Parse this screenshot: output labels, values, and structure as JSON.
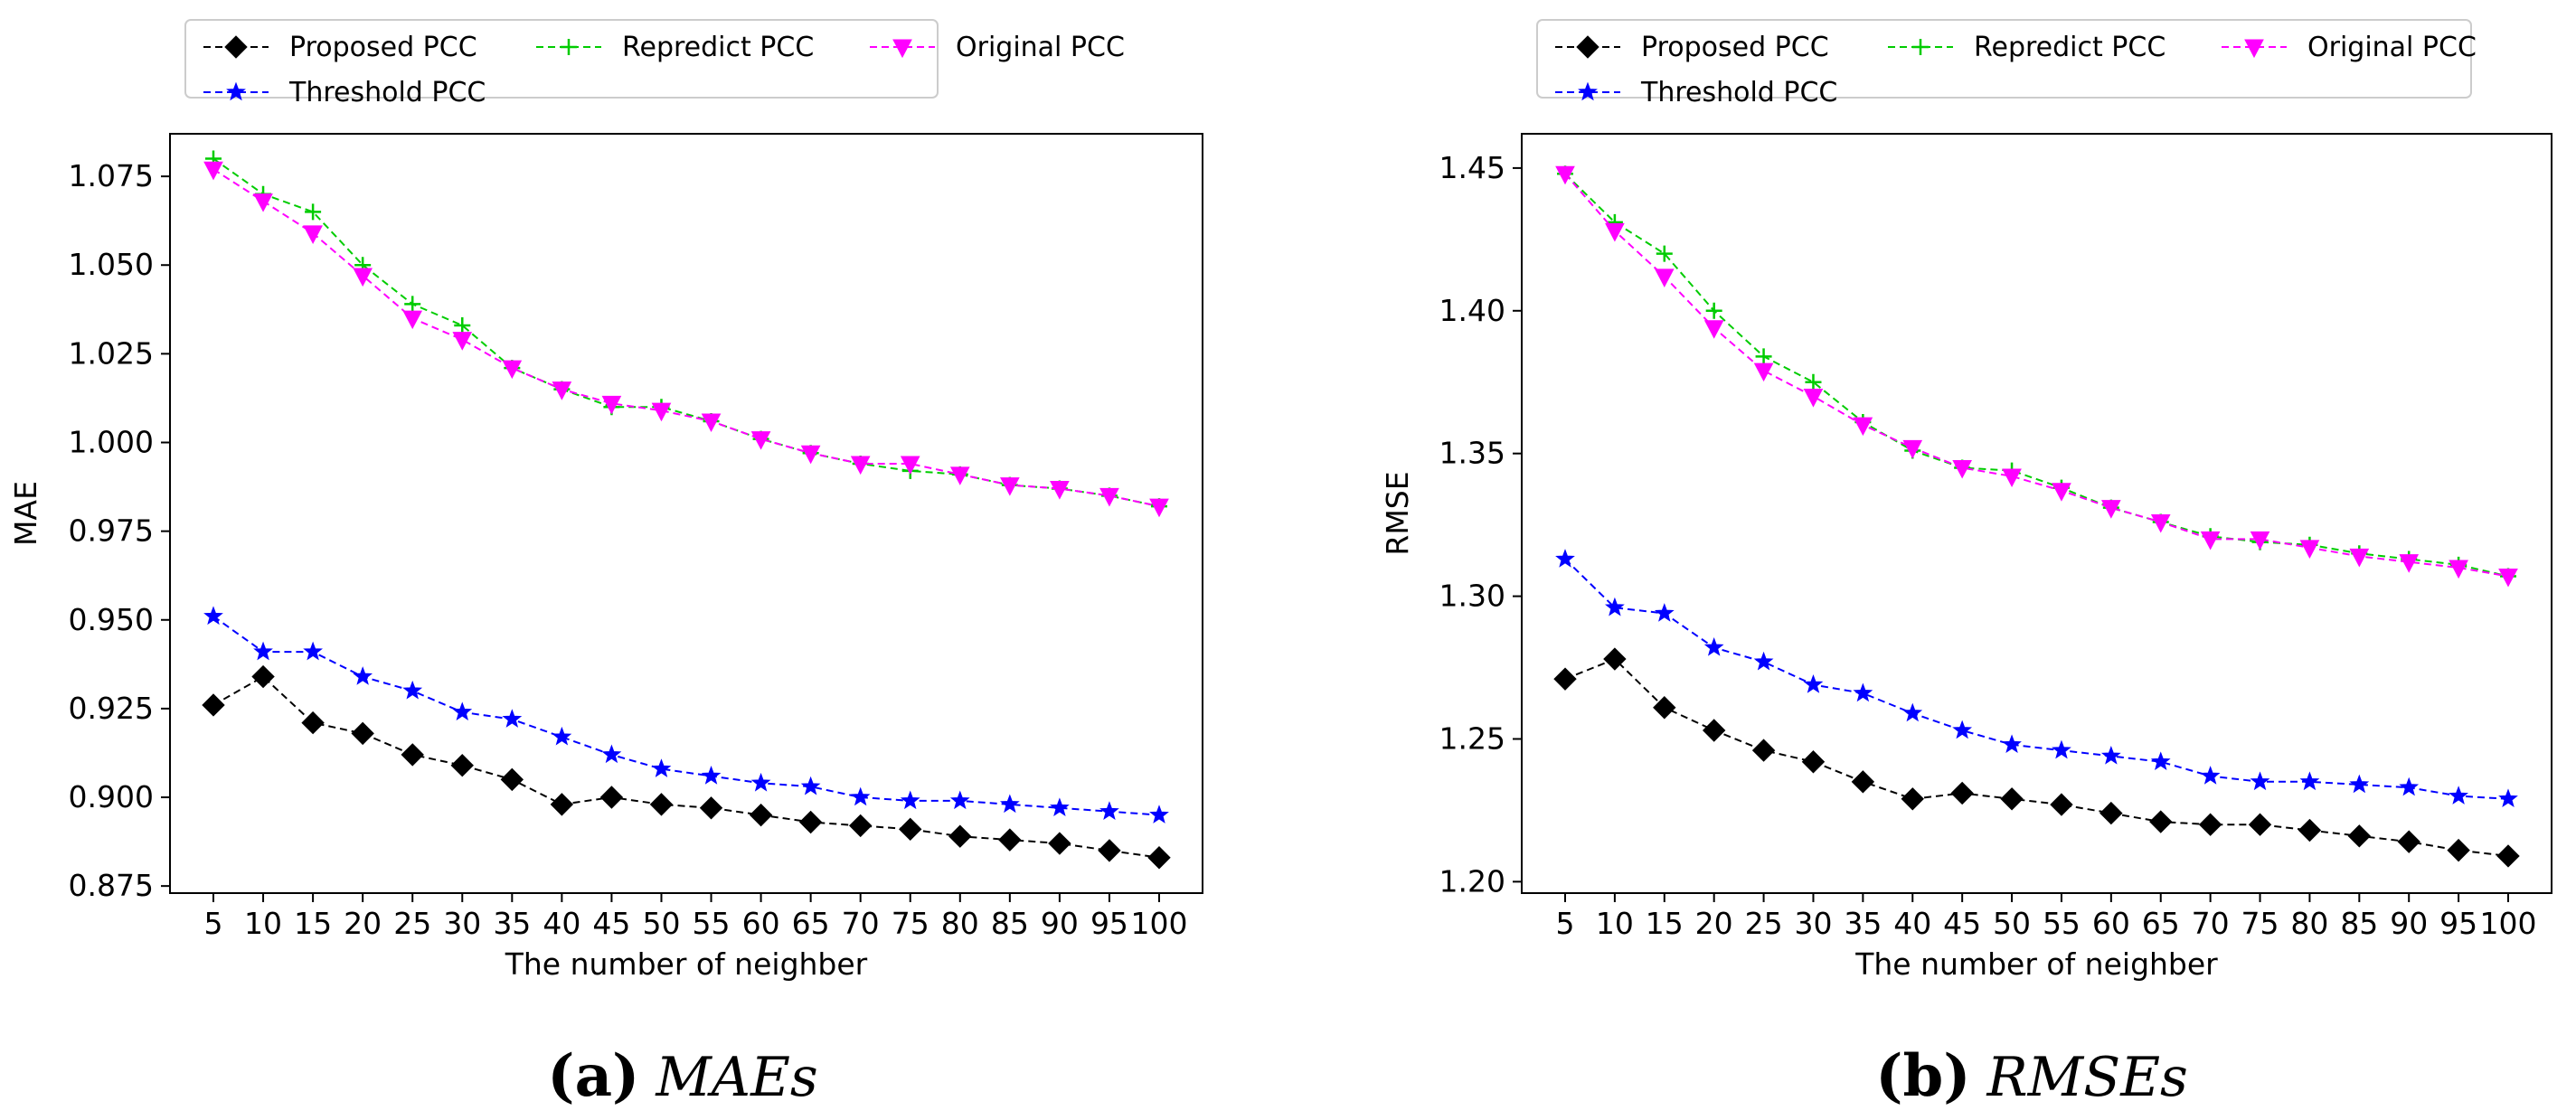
{
  "chart_data": [
    {
      "type": "line",
      "caption_letter": "(a)",
      "caption_text": "MAEs",
      "xlabel": "The number of neighber",
      "ylabel": "MAE",
      "categories": [
        "5",
        "10",
        "15",
        "20",
        "25",
        "30",
        "35",
        "40",
        "45",
        "50",
        "55",
        "60",
        "65",
        "70",
        "75",
        "80",
        "85",
        "90",
        "95",
        "100"
      ],
      "ylim": [
        0.873,
        1.087
      ],
      "yticks": [
        "0.875",
        "0.900",
        "0.925",
        "0.950",
        "0.975",
        "1.000",
        "1.025",
        "1.050",
        "1.075"
      ],
      "legend_position": "top",
      "series": [
        {
          "name": "Proposed PCC",
          "color": "#000000",
          "marker": "diamond",
          "values": [
            0.926,
            0.934,
            0.921,
            0.918,
            0.912,
            0.909,
            0.905,
            0.898,
            0.9,
            0.898,
            0.897,
            0.895,
            0.893,
            0.892,
            0.891,
            0.889,
            0.888,
            0.887,
            0.885,
            0.883
          ]
        },
        {
          "name": "Repredict PCC",
          "color": "#00cc00",
          "marker": "plus",
          "values": [
            1.08,
            1.07,
            1.065,
            1.05,
            1.039,
            1.033,
            1.021,
            1.015,
            1.01,
            1.01,
            1.006,
            1.001,
            0.997,
            0.994,
            0.992,
            0.991,
            0.988,
            0.987,
            0.985,
            0.982
          ]
        },
        {
          "name": "Original PCC",
          "color": "#ff00ff",
          "marker": "triangle-down",
          "values": [
            1.077,
            1.068,
            1.059,
            1.047,
            1.035,
            1.029,
            1.021,
            1.015,
            1.011,
            1.009,
            1.006,
            1.001,
            0.997,
            0.994,
            0.994,
            0.991,
            0.988,
            0.987,
            0.985,
            0.982
          ]
        },
        {
          "name": "Threshold PCC",
          "color": "#0000ff",
          "marker": "star",
          "values": [
            0.951,
            0.941,
            0.941,
            0.934,
            0.93,
            0.924,
            0.922,
            0.917,
            0.912,
            0.908,
            0.906,
            0.904,
            0.903,
            0.9,
            0.899,
            0.899,
            0.898,
            0.897,
            0.896,
            0.895
          ]
        }
      ]
    },
    {
      "type": "line",
      "caption_letter": "(b)",
      "caption_text": "RMSEs",
      "xlabel": "The number of neighber",
      "ylabel": "RMSE",
      "categories": [
        "5",
        "10",
        "15",
        "20",
        "25",
        "30",
        "35",
        "40",
        "45",
        "50",
        "55",
        "60",
        "65",
        "70",
        "75",
        "80",
        "85",
        "90",
        "95",
        "100"
      ],
      "ylim": [
        1.196,
        1.462
      ],
      "yticks": [
        "1.20",
        "1.25",
        "1.30",
        "1.35",
        "1.40",
        "1.45"
      ],
      "legend_position": "top",
      "series": [
        {
          "name": "Proposed PCC",
          "color": "#000000",
          "marker": "diamond",
          "values": [
            1.271,
            1.278,
            1.261,
            1.253,
            1.246,
            1.242,
            1.235,
            1.229,
            1.231,
            1.229,
            1.227,
            1.224,
            1.221,
            1.22,
            1.22,
            1.218,
            1.216,
            1.214,
            1.211,
            1.209
          ]
        },
        {
          "name": "Repredict PCC",
          "color": "#00cc00",
          "marker": "plus",
          "values": [
            1.448,
            1.431,
            1.42,
            1.4,
            1.384,
            1.375,
            1.361,
            1.351,
            1.345,
            1.344,
            1.338,
            1.331,
            1.326,
            1.321,
            1.319,
            1.318,
            1.315,
            1.313,
            1.311,
            1.307
          ]
        },
        {
          "name": "Original PCC",
          "color": "#ff00ff",
          "marker": "triangle-down",
          "values": [
            1.448,
            1.428,
            1.412,
            1.394,
            1.379,
            1.37,
            1.36,
            1.352,
            1.345,
            1.342,
            1.337,
            1.331,
            1.326,
            1.32,
            1.32,
            1.317,
            1.314,
            1.312,
            1.31,
            1.307
          ]
        },
        {
          "name": "Threshold PCC",
          "color": "#0000ff",
          "marker": "star",
          "values": [
            1.313,
            1.296,
            1.294,
            1.282,
            1.277,
            1.269,
            1.266,
            1.259,
            1.253,
            1.248,
            1.246,
            1.244,
            1.242,
            1.237,
            1.235,
            1.235,
            1.234,
            1.233,
            1.23,
            1.229
          ]
        }
      ]
    }
  ]
}
